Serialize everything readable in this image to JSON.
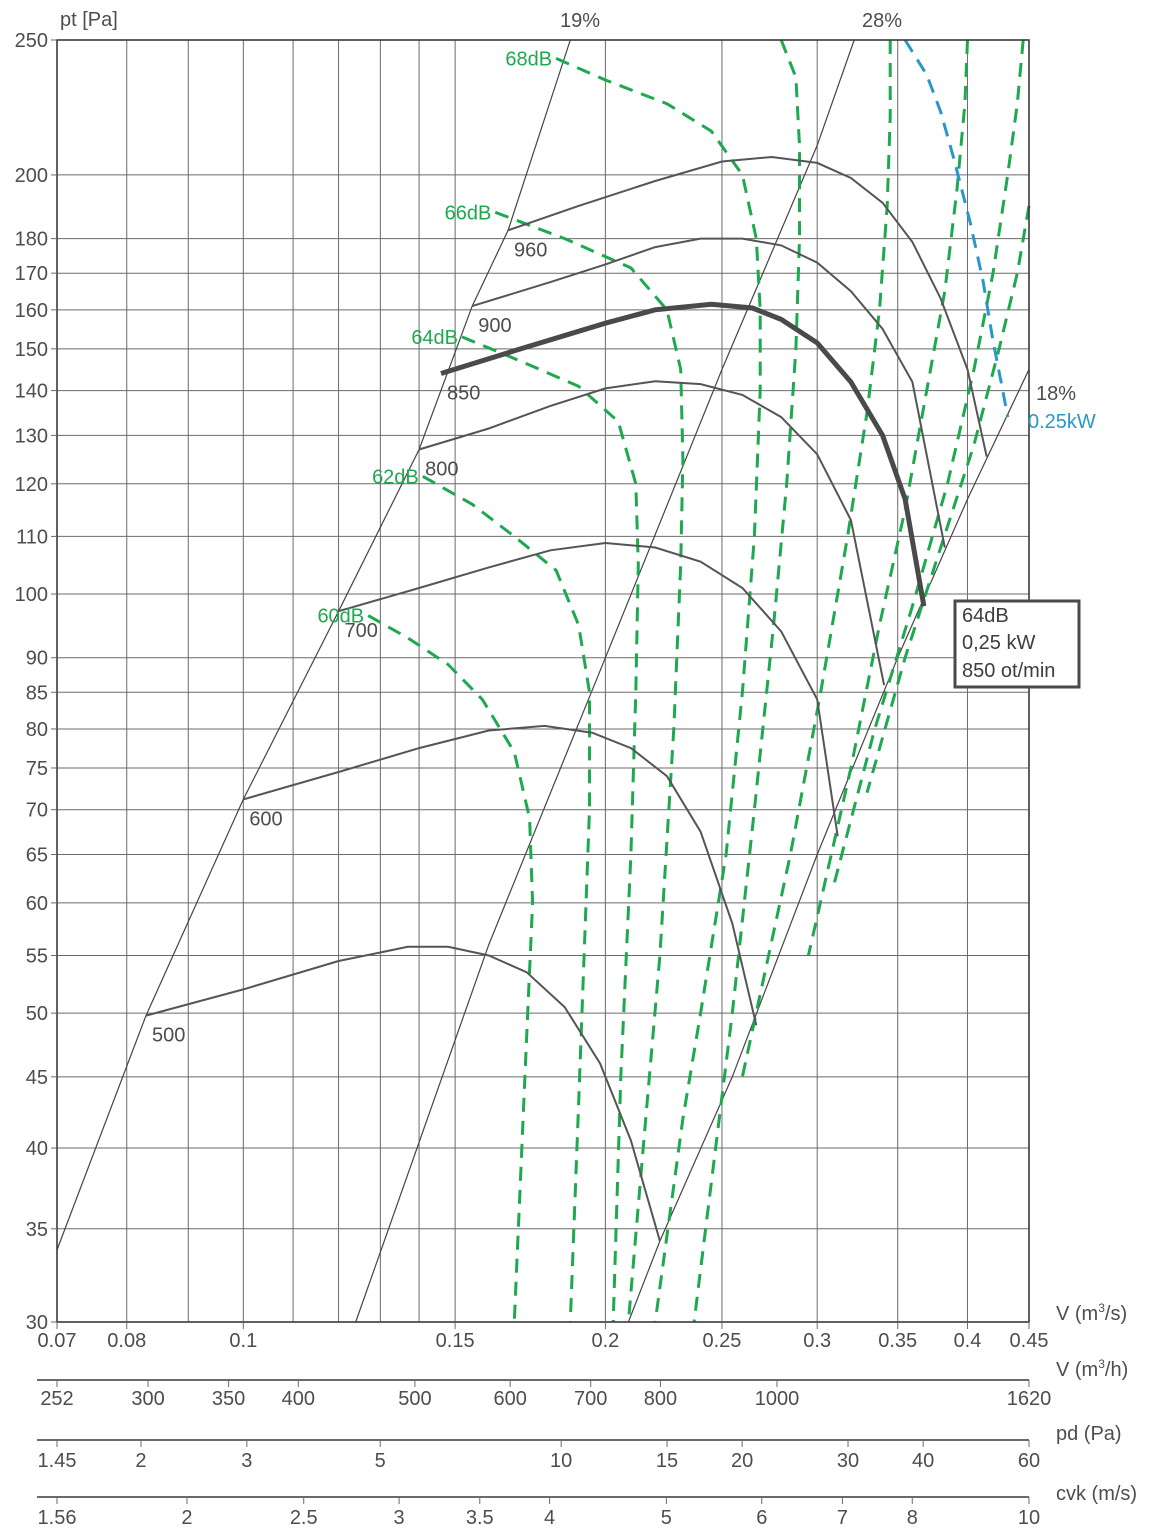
{
  "chart_data": {
    "type": "line",
    "y_axis": {
      "label": "pt [Pa]",
      "scale": "log",
      "range": [
        30,
        250
      ],
      "ticks": [
        250,
        200,
        180,
        170,
        160,
        150,
        140,
        130,
        120,
        110,
        100,
        90,
        85,
        80,
        75,
        70,
        65,
        60,
        55,
        50,
        45,
        40,
        35,
        30
      ]
    },
    "x_axes": [
      {
        "label": "V (m³/s)",
        "unit_base": "V (m",
        "unit_sup": "3",
        "unit_tail": "/s)",
        "scale": "log",
        "range": [
          0.07,
          0.45
        ],
        "ticks": [
          "0.07",
          "0.08",
          "0.1",
          "0.15",
          "0.2",
          "0.25",
          "0.3",
          "0.35",
          "0.4",
          "0.45"
        ],
        "tick_values": [
          0.07,
          0.08,
          0.1,
          0.15,
          0.2,
          0.25,
          0.3,
          0.35,
          0.4,
          0.45
        ]
      },
      {
        "label": "V (m³/h)",
        "unit_base": "V (m",
        "unit_sup": "3",
        "unit_tail": "/h)",
        "ticks": [
          "252",
          "300",
          "350",
          "400",
          "500",
          "600",
          "700",
          "800",
          "1000",
          "1620"
        ],
        "tick_values": [
          252,
          300,
          350,
          400,
          500,
          600,
          700,
          800,
          1000,
          1620
        ]
      },
      {
        "label": "pd (Pa)",
        "ticks": [
          "1.45",
          "2",
          "3",
          "5",
          "10",
          "15",
          "20",
          "30",
          "40",
          "60"
        ],
        "tick_values": [
          1.45,
          2,
          3,
          5,
          10,
          15,
          20,
          30,
          40,
          60
        ]
      },
      {
        "label": "cvk (m/s)",
        "ticks": [
          "1.56",
          "2",
          "2.5",
          "3",
          "3.5",
          "4",
          "5",
          "6",
          "7",
          "8",
          "10"
        ],
        "tick_values": [
          1.56,
          2,
          2.5,
          3,
          3.5,
          4,
          5,
          6,
          7,
          8,
          10
        ]
      }
    ],
    "grid_x": [
      0.07,
      0.08,
      0.09,
      0.1,
      0.11,
      0.12,
      0.13,
      0.14,
      0.15,
      0.2,
      0.25,
      0.3,
      0.35,
      0.4,
      0.45
    ],
    "grid_y": [
      30,
      35,
      40,
      45,
      50,
      55,
      60,
      65,
      70,
      75,
      80,
      85,
      90,
      100,
      110,
      120,
      130,
      140,
      150,
      160,
      170,
      180,
      200,
      250
    ],
    "speed_curves": [
      {
        "name": "500",
        "points": [
          [
            0.083,
            49.8
          ],
          [
            0.1,
            52.0
          ],
          [
            0.12,
            54.5
          ],
          [
            0.137,
            55.8
          ],
          [
            0.148,
            55.8
          ],
          [
            0.16,
            55.0
          ],
          [
            0.172,
            53.5
          ],
          [
            0.185,
            50.5
          ],
          [
            0.198,
            46.0
          ],
          [
            0.21,
            40.5
          ],
          [
            0.222,
            34.3
          ]
        ]
      },
      {
        "name": "600",
        "points": [
          [
            0.1,
            71.2
          ],
          [
            0.12,
            74.5
          ],
          [
            0.14,
            77.5
          ],
          [
            0.16,
            79.8
          ],
          [
            0.178,
            80.4
          ],
          [
            0.195,
            79.5
          ],
          [
            0.21,
            77.5
          ],
          [
            0.225,
            74.0
          ],
          [
            0.24,
            67.5
          ],
          [
            0.255,
            58.0
          ],
          [
            0.267,
            49.0
          ]
        ]
      },
      {
        "name": "700",
        "points": [
          [
            0.12,
            97.2
          ],
          [
            0.14,
            101.0
          ],
          [
            0.16,
            104.5
          ],
          [
            0.18,
            107.5
          ],
          [
            0.2,
            108.8
          ],
          [
            0.22,
            108.0
          ],
          [
            0.24,
            105.5
          ],
          [
            0.26,
            101.0
          ],
          [
            0.28,
            94.0
          ],
          [
            0.3,
            84.0
          ],
          [
            0.312,
            67.0
          ]
        ]
      },
      {
        "name": "800",
        "points": [
          [
            0.14,
            127.0
          ],
          [
            0.16,
            131.5
          ],
          [
            0.18,
            136.5
          ],
          [
            0.2,
            140.5
          ],
          [
            0.22,
            142.2
          ],
          [
            0.24,
            141.5
          ],
          [
            0.26,
            139.0
          ],
          [
            0.28,
            134.0
          ],
          [
            0.3,
            126.0
          ],
          [
            0.32,
            113.0
          ],
          [
            0.341,
            86.0
          ]
        ]
      },
      {
        "name": "850",
        "selected": true,
        "points": [
          [
            0.146,
            144.0
          ],
          [
            0.17,
            150.0
          ],
          [
            0.2,
            156.5
          ],
          [
            0.22,
            160.0
          ],
          [
            0.245,
            161.5
          ],
          [
            0.265,
            160.5
          ],
          [
            0.28,
            157.5
          ],
          [
            0.3,
            151.5
          ],
          [
            0.32,
            142.0
          ],
          [
            0.34,
            130.0
          ],
          [
            0.355,
            117.0
          ],
          [
            0.368,
            98.0
          ]
        ]
      },
      {
        "name": "900",
        "points": [
          [
            0.155,
            161.0
          ],
          [
            0.18,
            167.5
          ],
          [
            0.2,
            172.5
          ],
          [
            0.22,
            177.5
          ],
          [
            0.24,
            180.0
          ],
          [
            0.26,
            180.0
          ],
          [
            0.28,
            178.0
          ],
          [
            0.3,
            173.0
          ],
          [
            0.32,
            165.0
          ],
          [
            0.34,
            155.0
          ],
          [
            0.36,
            142.0
          ],
          [
            0.383,
            108.0
          ]
        ]
      },
      {
        "name": "960",
        "points": [
          [
            0.166,
            182.5
          ],
          [
            0.19,
            190.0
          ],
          [
            0.22,
            198.0
          ],
          [
            0.25,
            204.5
          ],
          [
            0.275,
            206.0
          ],
          [
            0.3,
            204.0
          ],
          [
            0.32,
            199.0
          ],
          [
            0.34,
            191.0
          ],
          [
            0.36,
            179.0
          ],
          [
            0.38,
            163.0
          ],
          [
            0.4,
            145.0
          ],
          [
            0.415,
            125.5
          ]
        ]
      }
    ],
    "efficiency_lines": [
      {
        "name": "19%",
        "points": [
          [
            0.07,
            33.8
          ],
          [
            0.083,
            49.8
          ],
          [
            0.1,
            71.2
          ],
          [
            0.12,
            97.2
          ],
          [
            0.14,
            127.0
          ],
          [
            0.155,
            161.0
          ],
          [
            0.166,
            182.5
          ],
          [
            0.187,
            250.0
          ]
        ]
      },
      {
        "name": "28%",
        "points": [
          [
            0.124,
            30.0
          ],
          [
            0.16,
            56.0
          ],
          [
            0.2,
            90.0
          ],
          [
            0.25,
            145.0
          ],
          [
            0.3,
            210.0
          ],
          [
            0.322,
            250.0
          ]
        ]
      },
      {
        "name": "18%",
        "points": [
          [
            0.209,
            30.0
          ],
          [
            0.222,
            34.3
          ],
          [
            0.255,
            45.0
          ],
          [
            0.3,
            65.0
          ],
          [
            0.35,
            90.0
          ],
          [
            0.4,
            117.0
          ],
          [
            0.45,
            145.0
          ]
        ]
      }
    ],
    "noise_curves": [
      {
        "name": "60dB",
        "points": [
          [
            0.127,
            96.5
          ],
          [
            0.137,
            93.0
          ],
          [
            0.148,
            89.0
          ],
          [
            0.158,
            84.0
          ],
          [
            0.168,
            77.0
          ],
          [
            0.173,
            69.0
          ],
          [
            0.174,
            60.0
          ],
          [
            0.172,
            48.0
          ],
          [
            0.17,
            38.0
          ],
          [
            0.168,
            30.0
          ]
        ]
      },
      {
        "name": "62dB",
        "points": [
          [
            0.141,
            121.5
          ],
          [
            0.155,
            116.0
          ],
          [
            0.168,
            110.0
          ],
          [
            0.182,
            104.0
          ],
          [
            0.19,
            95.0
          ],
          [
            0.194,
            85.0
          ],
          [
            0.194,
            70.0
          ],
          [
            0.192,
            55.0
          ],
          [
            0.19,
            43.0
          ],
          [
            0.187,
            30.0
          ]
        ]
      },
      {
        "name": "64dB",
        "points": [
          [
            0.152,
            153.0
          ],
          [
            0.17,
            147.0
          ],
          [
            0.19,
            141.0
          ],
          [
            0.205,
            133.0
          ],
          [
            0.212,
            120.0
          ],
          [
            0.213,
            105.0
          ],
          [
            0.212,
            85.0
          ],
          [
            0.21,
            65.0
          ],
          [
            0.206,
            45.0
          ],
          [
            0.203,
            30.0
          ]
        ]
      },
      {
        "name": "66dB",
        "points": [
          [
            0.162,
            188.0
          ],
          [
            0.185,
            180.0
          ],
          [
            0.21,
            171.5
          ],
          [
            0.225,
            160.0
          ],
          [
            0.231,
            145.0
          ],
          [
            0.232,
            125.0
          ],
          [
            0.231,
            105.0
          ],
          [
            0.228,
            80.0
          ],
          [
            0.222,
            55.0
          ],
          [
            0.215,
            40.0
          ],
          [
            0.209,
            30.0
          ]
        ]
      },
      {
        "name": "68dB",
        "points": [
          [
            0.182,
            242.5
          ],
          [
            0.2,
            234.0
          ],
          [
            0.225,
            225.0
          ],
          [
            0.245,
            215.0
          ],
          [
            0.26,
            200.0
          ],
          [
            0.267,
            180.0
          ],
          [
            0.269,
            160.0
          ],
          [
            0.269,
            140.0
          ],
          [
            0.266,
            110.0
          ],
          [
            0.26,
            85.0
          ],
          [
            0.252,
            65.0
          ],
          [
            0.24,
            50.0
          ],
          [
            0.232,
            42.0
          ],
          [
            0.22,
            30.0
          ]
        ]
      }
    ],
    "noise_lines_unlabeled": [
      [
        [
          0.28,
          250.0
        ],
        [
          0.288,
          235.0
        ],
        [
          0.29,
          210.0
        ],
        [
          0.29,
          180.0
        ],
        [
          0.288,
          150.0
        ],
        [
          0.283,
          120.0
        ],
        [
          0.276,
          95.0
        ],
        [
          0.266,
          70.0
        ],
        [
          0.255,
          50.0
        ],
        [
          0.237,
          30.0
        ]
      ],
      [
        [
          0.345,
          250.0
        ],
        [
          0.345,
          220.0
        ],
        [
          0.343,
          190.0
        ],
        [
          0.338,
          160.0
        ],
        [
          0.33,
          135.0
        ],
        [
          0.318,
          110.0
        ],
        [
          0.302,
          85.0
        ],
        [
          0.285,
          65.0
        ],
        [
          0.26,
          45.0
        ]
      ],
      [
        [
          0.4,
          250.0
        ],
        [
          0.398,
          225.0
        ],
        [
          0.392,
          195.0
        ],
        [
          0.383,
          165.0
        ],
        [
          0.37,
          140.0
        ],
        [
          0.355,
          115.0
        ],
        [
          0.338,
          95.0
        ],
        [
          0.32,
          75.0
        ],
        [
          0.295,
          55.0
        ]
      ],
      [
        [
          0.445,
          250.0
        ],
        [
          0.44,
          225.0
        ],
        [
          0.432,
          200.0
        ],
        [
          0.42,
          170.0
        ],
        [
          0.405,
          145.0
        ],
        [
          0.385,
          120.0
        ],
        [
          0.36,
          98.0
        ],
        [
          0.335,
          80.0
        ],
        [
          0.31,
          62.0
        ]
      ],
      [
        [
          0.45,
          190.0
        ],
        [
          0.44,
          170.0
        ],
        [
          0.425,
          150.0
        ],
        [
          0.405,
          128.0
        ],
        [
          0.38,
          108.0
        ],
        [
          0.355,
          90.0
        ],
        [
          0.33,
          72.0
        ]
      ]
    ],
    "power_line": {
      "name": "0.25kW",
      "points": [
        [
          0.355,
          250.0
        ],
        [
          0.37,
          236.0
        ],
        [
          0.38,
          222.0
        ],
        [
          0.39,
          205.0
        ],
        [
          0.402,
          185.0
        ],
        [
          0.412,
          168.0
        ],
        [
          0.42,
          152.0
        ],
        [
          0.428,
          140.0
        ],
        [
          0.432,
          134.0
        ]
      ]
    },
    "colors": {
      "speed": "#555555",
      "noise": "#1ea84f",
      "power": "#2a97c9",
      "grid": "#6b6b6b"
    },
    "operating_point": {
      "lines": [
        "64dB",
        "0,25 kW",
        "850 ot/min"
      ]
    },
    "grid": true
  }
}
